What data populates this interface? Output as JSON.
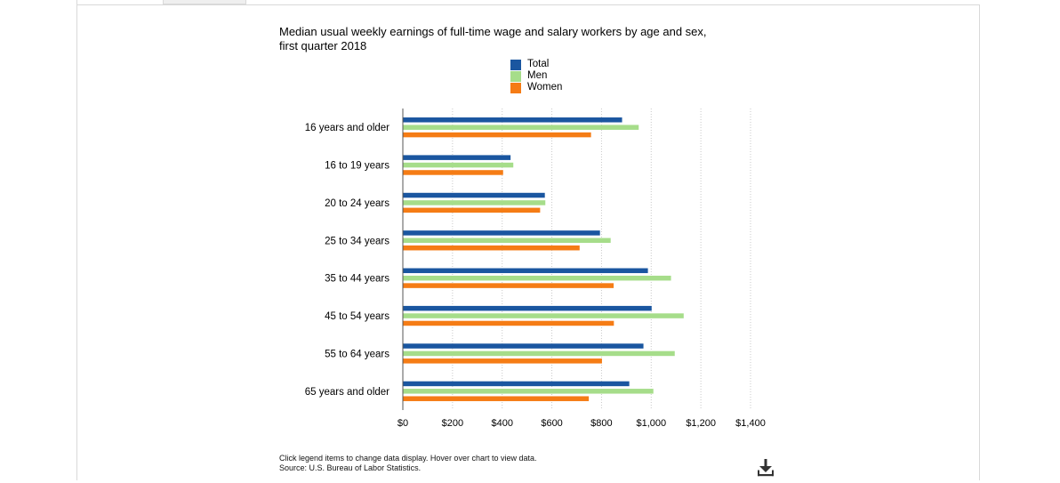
{
  "title": "Median usual weekly earnings of full-time wage and salary workers by age and sex, first quarter 2018",
  "footnote": {
    "line1": "Click legend items to change data display. Hover over chart to view data.",
    "line2": "Source: U.S. Bureau of Labor Statistics."
  },
  "icons": {
    "download": "download-icon"
  },
  "colors": {
    "total": "#1a56a0",
    "men": "#a6dd8a",
    "women": "#f57c15",
    "grid": "#c8c8c8",
    "axis": "#555555"
  },
  "chart_data": {
    "type": "bar",
    "orientation": "horizontal",
    "title": "Median usual weekly earnings of full-time wage and salary workers by age and sex, first quarter 2018",
    "categories": [
      "16 years and older",
      "16 to 19 years",
      "20 to 24 years",
      "25 to 34 years",
      "35 to 44 years",
      "45 to 54 years",
      "55 to 64 years",
      "65 years and older"
    ],
    "series": [
      {
        "name": "Total",
        "color": "#1a56a0",
        "values": [
          881,
          432,
          570,
          792,
          985,
          1000,
          967,
          910
        ]
      },
      {
        "name": "Men",
        "color": "#a6dd8a",
        "values": [
          948,
          443,
          572,
          835,
          1078,
          1129,
          1093,
          1007
        ]
      },
      {
        "name": "Women",
        "color": "#f57c15",
        "values": [
          756,
          402,
          551,
          710,
          847,
          848,
          800,
          747
        ]
      }
    ],
    "xlim": [
      0,
      1400
    ],
    "x_ticks": [
      0,
      200,
      400,
      600,
      800,
      1000,
      1200,
      1400
    ],
    "x_tick_labels": [
      "$0",
      "$200",
      "$400",
      "$600",
      "$800",
      "$1,000",
      "$1,200",
      "$1,400"
    ],
    "grid": true,
    "legend_position": "top"
  }
}
